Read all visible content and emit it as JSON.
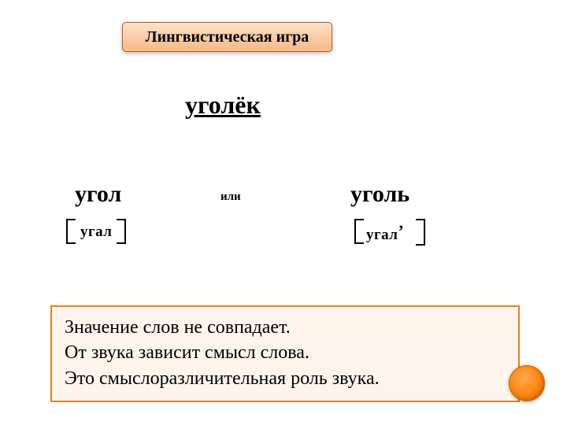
{
  "title": "Лингвистическая игра",
  "main_word": "уголёк",
  "or_label": "или",
  "left": {
    "word": "угол",
    "transcription": "угал"
  },
  "right": {
    "word": "уголь",
    "transcription": "угал",
    "soft": "’"
  },
  "explanation": {
    "line1": "Значение слов не совпадает.",
    "line2": "От звука зависит смысл слова.",
    "line3": "Это смыслоразличительная роль звука."
  },
  "colors": {
    "title_border": "#b85a1e",
    "box_border": "#e2822b",
    "box_bg": "#fdf4ec",
    "circle": "#ff7a00"
  }
}
